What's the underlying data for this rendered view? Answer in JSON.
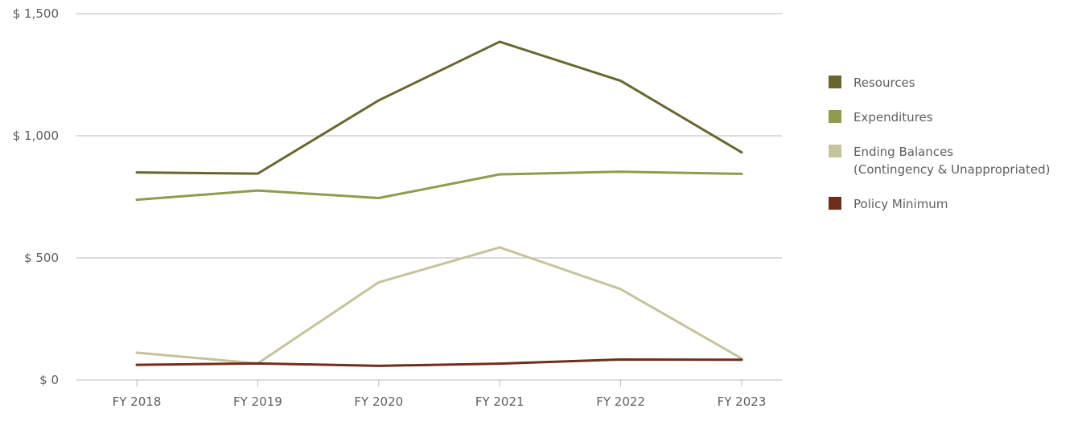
{
  "chart_data": {
    "type": "line",
    "x": [
      "FY 2018",
      "FY 2019",
      "FY 2020",
      "FY 2021",
      "FY 2022",
      "FY 2023"
    ],
    "y_ticks": [
      "$ 0",
      "$ 500",
      "$ 1,000",
      "$ 1,500"
    ],
    "ylim": [
      0,
      1500
    ],
    "grid": "horizontal",
    "legend_position": "right",
    "series": [
      {
        "name": "Resources",
        "color": "#69662f",
        "values": [
          850,
          845,
          1145,
          1385,
          1225,
          932
        ]
      },
      {
        "name": "Expenditures",
        "color": "#8f9b4d",
        "values": [
          738,
          776,
          745,
          842,
          853,
          844
        ]
      },
      {
        "name": "Ending Balances",
        "name_line2": "(Contingency & Unappropriated)",
        "color": "#c6c39c",
        "values": [
          112,
          68,
          400,
          543,
          372,
          88
        ]
      },
      {
        "name": "Policy Minimum",
        "color": "#6e2f1c",
        "values": [
          62,
          68,
          58,
          67,
          84,
          83
        ]
      }
    ]
  }
}
